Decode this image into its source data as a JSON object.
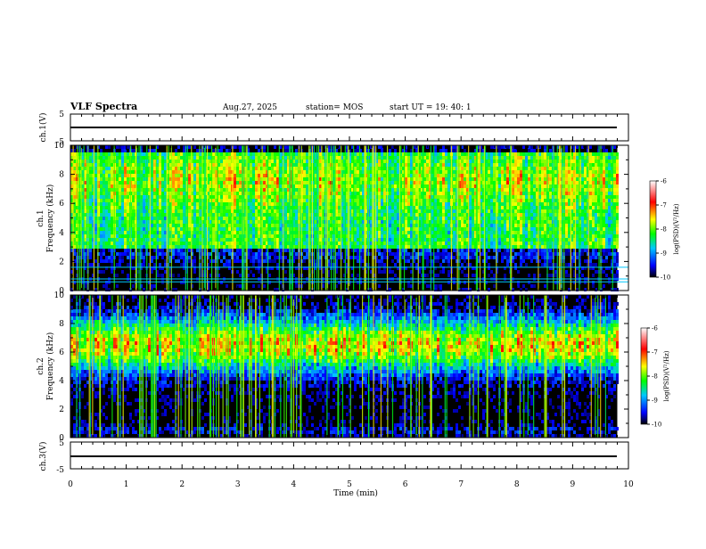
{
  "header": {
    "title": "VLF Spectra",
    "date": "Aug.27, 2025",
    "station": "station= MOS",
    "start_ut": "start  UT  =   19: 40: 1"
  },
  "colors": {
    "low": "#000000",
    "blue": "#0000ff",
    "cyan": "#00c8ff",
    "green": "#00ff00",
    "yellow": "#ffff00",
    "red": "#ff0000",
    "high": "#ffffff"
  },
  "chart_data": [
    {
      "type": "line",
      "id": "ch1-waveform",
      "ylabel": "ch.1(V)",
      "ylim": [
        -5,
        5
      ],
      "yticks": [
        "5",
        "-5"
      ],
      "xlim": [
        0,
        10
      ],
      "series": [
        {
          "values": [
            -0.2,
            -0.2
          ]
        }
      ]
    },
    {
      "type": "heatmap",
      "id": "ch1-spectrogram",
      "ylabel": "ch.1\nFrequency (kHz)",
      "ylabel_lines": [
        "ch.1",
        "Frequency (kHz)"
      ],
      "ylim": [
        0,
        10
      ],
      "yticks": [
        "0",
        "2",
        "4",
        "6",
        "8",
        "10"
      ],
      "xlim": [
        0,
        9.8
      ],
      "colorbar": {
        "label": "log(PSD)(V²/Hz)",
        "range": [
          -10,
          -6
        ],
        "ticks": [
          "-6",
          "-7",
          "-8",
          "-9",
          "-10"
        ]
      },
      "dominant_band_khz": [
        3,
        9.5
      ],
      "lines_khz": [
        0.6,
        0.8,
        1.6
      ]
    },
    {
      "type": "heatmap",
      "id": "ch2-spectrogram",
      "ylabel": "ch.2\nFrequency (kHz)",
      "ylabel_lines": [
        "ch.2",
        "Frequency (kHz)"
      ],
      "ylim": [
        0,
        10
      ],
      "yticks": [
        "0",
        "2",
        "4",
        "6",
        "8",
        "10"
      ],
      "xlim": [
        0,
        9.8
      ],
      "colorbar": {
        "label": "log(PSD)(V²/Hz)",
        "range": [
          -10,
          -6
        ],
        "ticks": [
          "-6",
          "-7",
          "-8",
          "-9",
          "-10"
        ]
      },
      "dominant_band_khz": [
        4,
        8
      ],
      "peak_khz": 6.5
    },
    {
      "type": "line",
      "id": "ch3-waveform",
      "ylabel": "ch.3(V)",
      "ylim": [
        -5,
        5
      ],
      "yticks": [
        "5",
        "-5"
      ],
      "xlim": [
        0,
        10
      ],
      "series": [
        {
          "values": [
            -0.2,
            -0.2
          ]
        }
      ]
    }
  ],
  "xaxis": {
    "label": "Time  (min)",
    "range": [
      0,
      10
    ],
    "ticks": [
      "0",
      "1",
      "2",
      "3",
      "4",
      "5",
      "6",
      "7",
      "8",
      "9",
      "10"
    ]
  }
}
